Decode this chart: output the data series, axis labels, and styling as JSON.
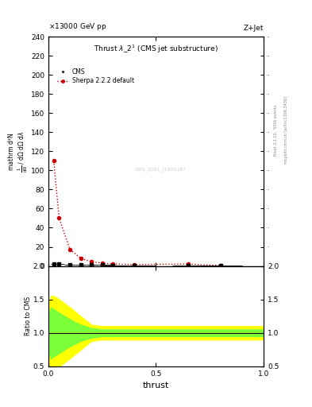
{
  "title": "Thrust $\\lambda\\_2^1$ (CMS jet substructure)",
  "top_label_left": "13000 GeV pp",
  "top_label_right": "Z+Jet",
  "watermark": "CMS_2021_I1920187",
  "xlabel": "thrust",
  "ylabel_ratio": "Ratio to CMS",
  "cms_x": [
    0.025,
    0.05,
    0.1,
    0.15,
    0.2,
    0.25,
    0.3,
    0.4,
    0.65,
    0.8
  ],
  "cms_y": [
    2.0,
    1.8,
    1.5,
    1.2,
    1.0,
    0.9,
    0.8,
    0.7,
    0.6,
    0.5
  ],
  "cms_xerr": [
    0.0125,
    0.025,
    0.025,
    0.025,
    0.025,
    0.05,
    0.05,
    0.1,
    0.075,
    0.1
  ],
  "cms_yerr": [
    0.05,
    0.05,
    0.04,
    0.03,
    0.03,
    0.02,
    0.02,
    0.015,
    0.01,
    0.008
  ],
  "sherpa_x": [
    0.025,
    0.05,
    0.1,
    0.15,
    0.2,
    0.25,
    0.3,
    0.4,
    0.65,
    0.8
  ],
  "sherpa_y": [
    110.0,
    50.0,
    17.5,
    8.0,
    4.5,
    3.0,
    2.0,
    1.5,
    2.0,
    0.5
  ],
  "ylim_main": [
    0,
    240
  ],
  "ylim_ratio": [
    0.5,
    2.0
  ],
  "yticks_main": [
    0,
    20,
    40,
    60,
    80,
    100,
    120,
    140,
    160,
    180,
    200,
    220,
    240
  ],
  "yticks_ratio": [
    0.5,
    1.0,
    1.5,
    2.0
  ],
  "xlim": [
    0.0,
    1.0
  ],
  "xticks": [
    0.0,
    0.5,
    1.0
  ],
  "cms_color": "#000000",
  "sherpa_color": "#cc0000",
  "band_yellow": "#ffff00",
  "band_green": "#66ff44",
  "yellow_x": [
    0.0,
    0.0125,
    0.025,
    0.05,
    0.1,
    0.15,
    0.2,
    0.25,
    1.0
  ],
  "yellow_ylo": [
    0.55,
    0.45,
    0.45,
    0.5,
    0.62,
    0.75,
    0.88,
    0.9,
    0.9
  ],
  "yellow_yhi": [
    1.45,
    1.55,
    1.55,
    1.5,
    1.38,
    1.25,
    1.12,
    1.1,
    1.1
  ],
  "green_x": [
    0.0,
    0.0125,
    0.025,
    0.05,
    0.1,
    0.15,
    0.2,
    0.25,
    1.0
  ],
  "green_ylo": [
    0.72,
    0.62,
    0.65,
    0.7,
    0.8,
    0.88,
    0.93,
    0.95,
    0.95
  ],
  "green_yhi": [
    1.28,
    1.38,
    1.35,
    1.3,
    1.2,
    1.12,
    1.07,
    1.05,
    1.05
  ],
  "right_text1": "Rivet 3.1.10,  500k events",
  "right_text2": "mcplots.cern.ch [arXiv:1306.3436]"
}
